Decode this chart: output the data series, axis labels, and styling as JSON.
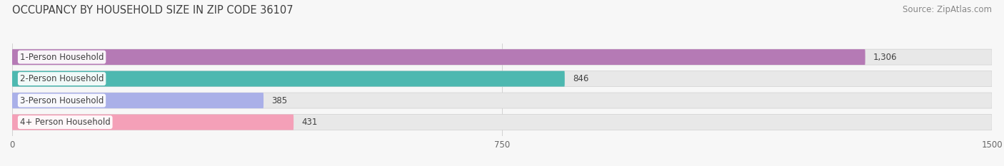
{
  "title": "OCCUPANCY BY HOUSEHOLD SIZE IN ZIP CODE 36107",
  "source": "Source: ZipAtlas.com",
  "categories": [
    "1-Person Household",
    "2-Person Household",
    "3-Person Household",
    "4+ Person Household"
  ],
  "values": [
    1306,
    846,
    385,
    431
  ],
  "bar_colors": [
    "#b57ab5",
    "#4db8b0",
    "#aab0e8",
    "#f4a0b8"
  ],
  "xlim_max": 1500,
  "xticks": [
    0,
    750,
    1500
  ],
  "label_fontsize": 8.5,
  "value_fontsize": 8.5,
  "title_fontsize": 10.5,
  "source_fontsize": 8.5,
  "background_color": "#f7f7f7",
  "bar_bg_color": "#e8e8e8",
  "bar_height": 0.72,
  "bar_gap": 0.28
}
